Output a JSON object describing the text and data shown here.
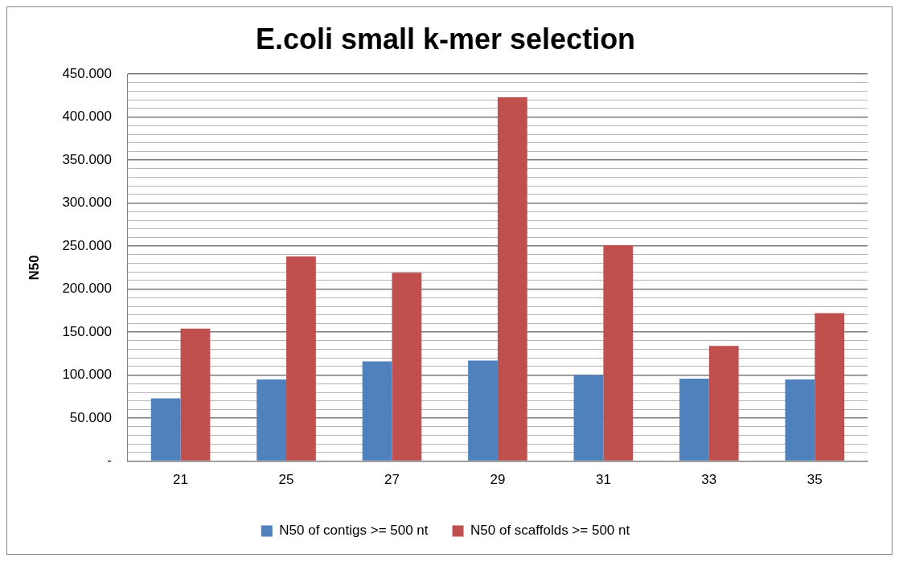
{
  "chart_data": {
    "type": "bar",
    "title": "E.coli small k-mer selection",
    "ylabel": "N50",
    "categories": [
      "21",
      "25",
      "27",
      "29",
      "31",
      "33",
      "35"
    ],
    "series": [
      {
        "name": "N50 of contigs >= 500 nt",
        "color": "#4f81bd",
        "values": [
          73000,
          95000,
          116000,
          117000,
          100000,
          96000,
          95000
        ]
      },
      {
        "name": "N50 of scaffolds >= 500 nt",
        "color": "#c0504d",
        "values": [
          154000,
          238000,
          219000,
          423000,
          251000,
          134000,
          172000
        ]
      }
    ],
    "ylim": [
      0,
      450000
    ],
    "yticks": [
      {
        "value": 0,
        "label": "-"
      },
      {
        "value": 10000,
        "label": null
      },
      {
        "value": 20000,
        "label": null
      },
      {
        "value": 30000,
        "label": null
      },
      {
        "value": 40000,
        "label": null
      },
      {
        "value": 50000,
        "label": "50.000"
      },
      {
        "value": 60000,
        "label": null
      },
      {
        "value": 70000,
        "label": null
      },
      {
        "value": 80000,
        "label": null
      },
      {
        "value": 90000,
        "label": null
      },
      {
        "value": 100000,
        "label": "100.000"
      },
      {
        "value": 110000,
        "label": null
      },
      {
        "value": 120000,
        "label": null
      },
      {
        "value": 130000,
        "label": null
      },
      {
        "value": 140000,
        "label": null
      },
      {
        "value": 150000,
        "label": "150.000"
      },
      {
        "value": 160000,
        "label": null
      },
      {
        "value": 170000,
        "label": null
      },
      {
        "value": 180000,
        "label": null
      },
      {
        "value": 190000,
        "label": null
      },
      {
        "value": 200000,
        "label": "200.000"
      },
      {
        "value": 210000,
        "label": null
      },
      {
        "value": 220000,
        "label": null
      },
      {
        "value": 230000,
        "label": null
      },
      {
        "value": 240000,
        "label": null
      },
      {
        "value": 250000,
        "label": "250.000"
      },
      {
        "value": 260000,
        "label": null
      },
      {
        "value": 270000,
        "label": null
      },
      {
        "value": 280000,
        "label": null
      },
      {
        "value": 290000,
        "label": null
      },
      {
        "value": 300000,
        "label": "300.000"
      },
      {
        "value": 310000,
        "label": null
      },
      {
        "value": 320000,
        "label": null
      },
      {
        "value": 330000,
        "label": null
      },
      {
        "value": 340000,
        "label": null
      },
      {
        "value": 350000,
        "label": "350.000"
      },
      {
        "value": 360000,
        "label": null
      },
      {
        "value": 370000,
        "label": null
      },
      {
        "value": 380000,
        "label": null
      },
      {
        "value": 390000,
        "label": null
      },
      {
        "value": 400000,
        "label": "400.000"
      },
      {
        "value": 410000,
        "label": null
      },
      {
        "value": 420000,
        "label": null
      },
      {
        "value": 430000,
        "label": null
      },
      {
        "value": 440000,
        "label": null
      },
      {
        "value": 450000,
        "label": "450.000"
      }
    ],
    "grid": "y",
    "legend": "bottom"
  }
}
